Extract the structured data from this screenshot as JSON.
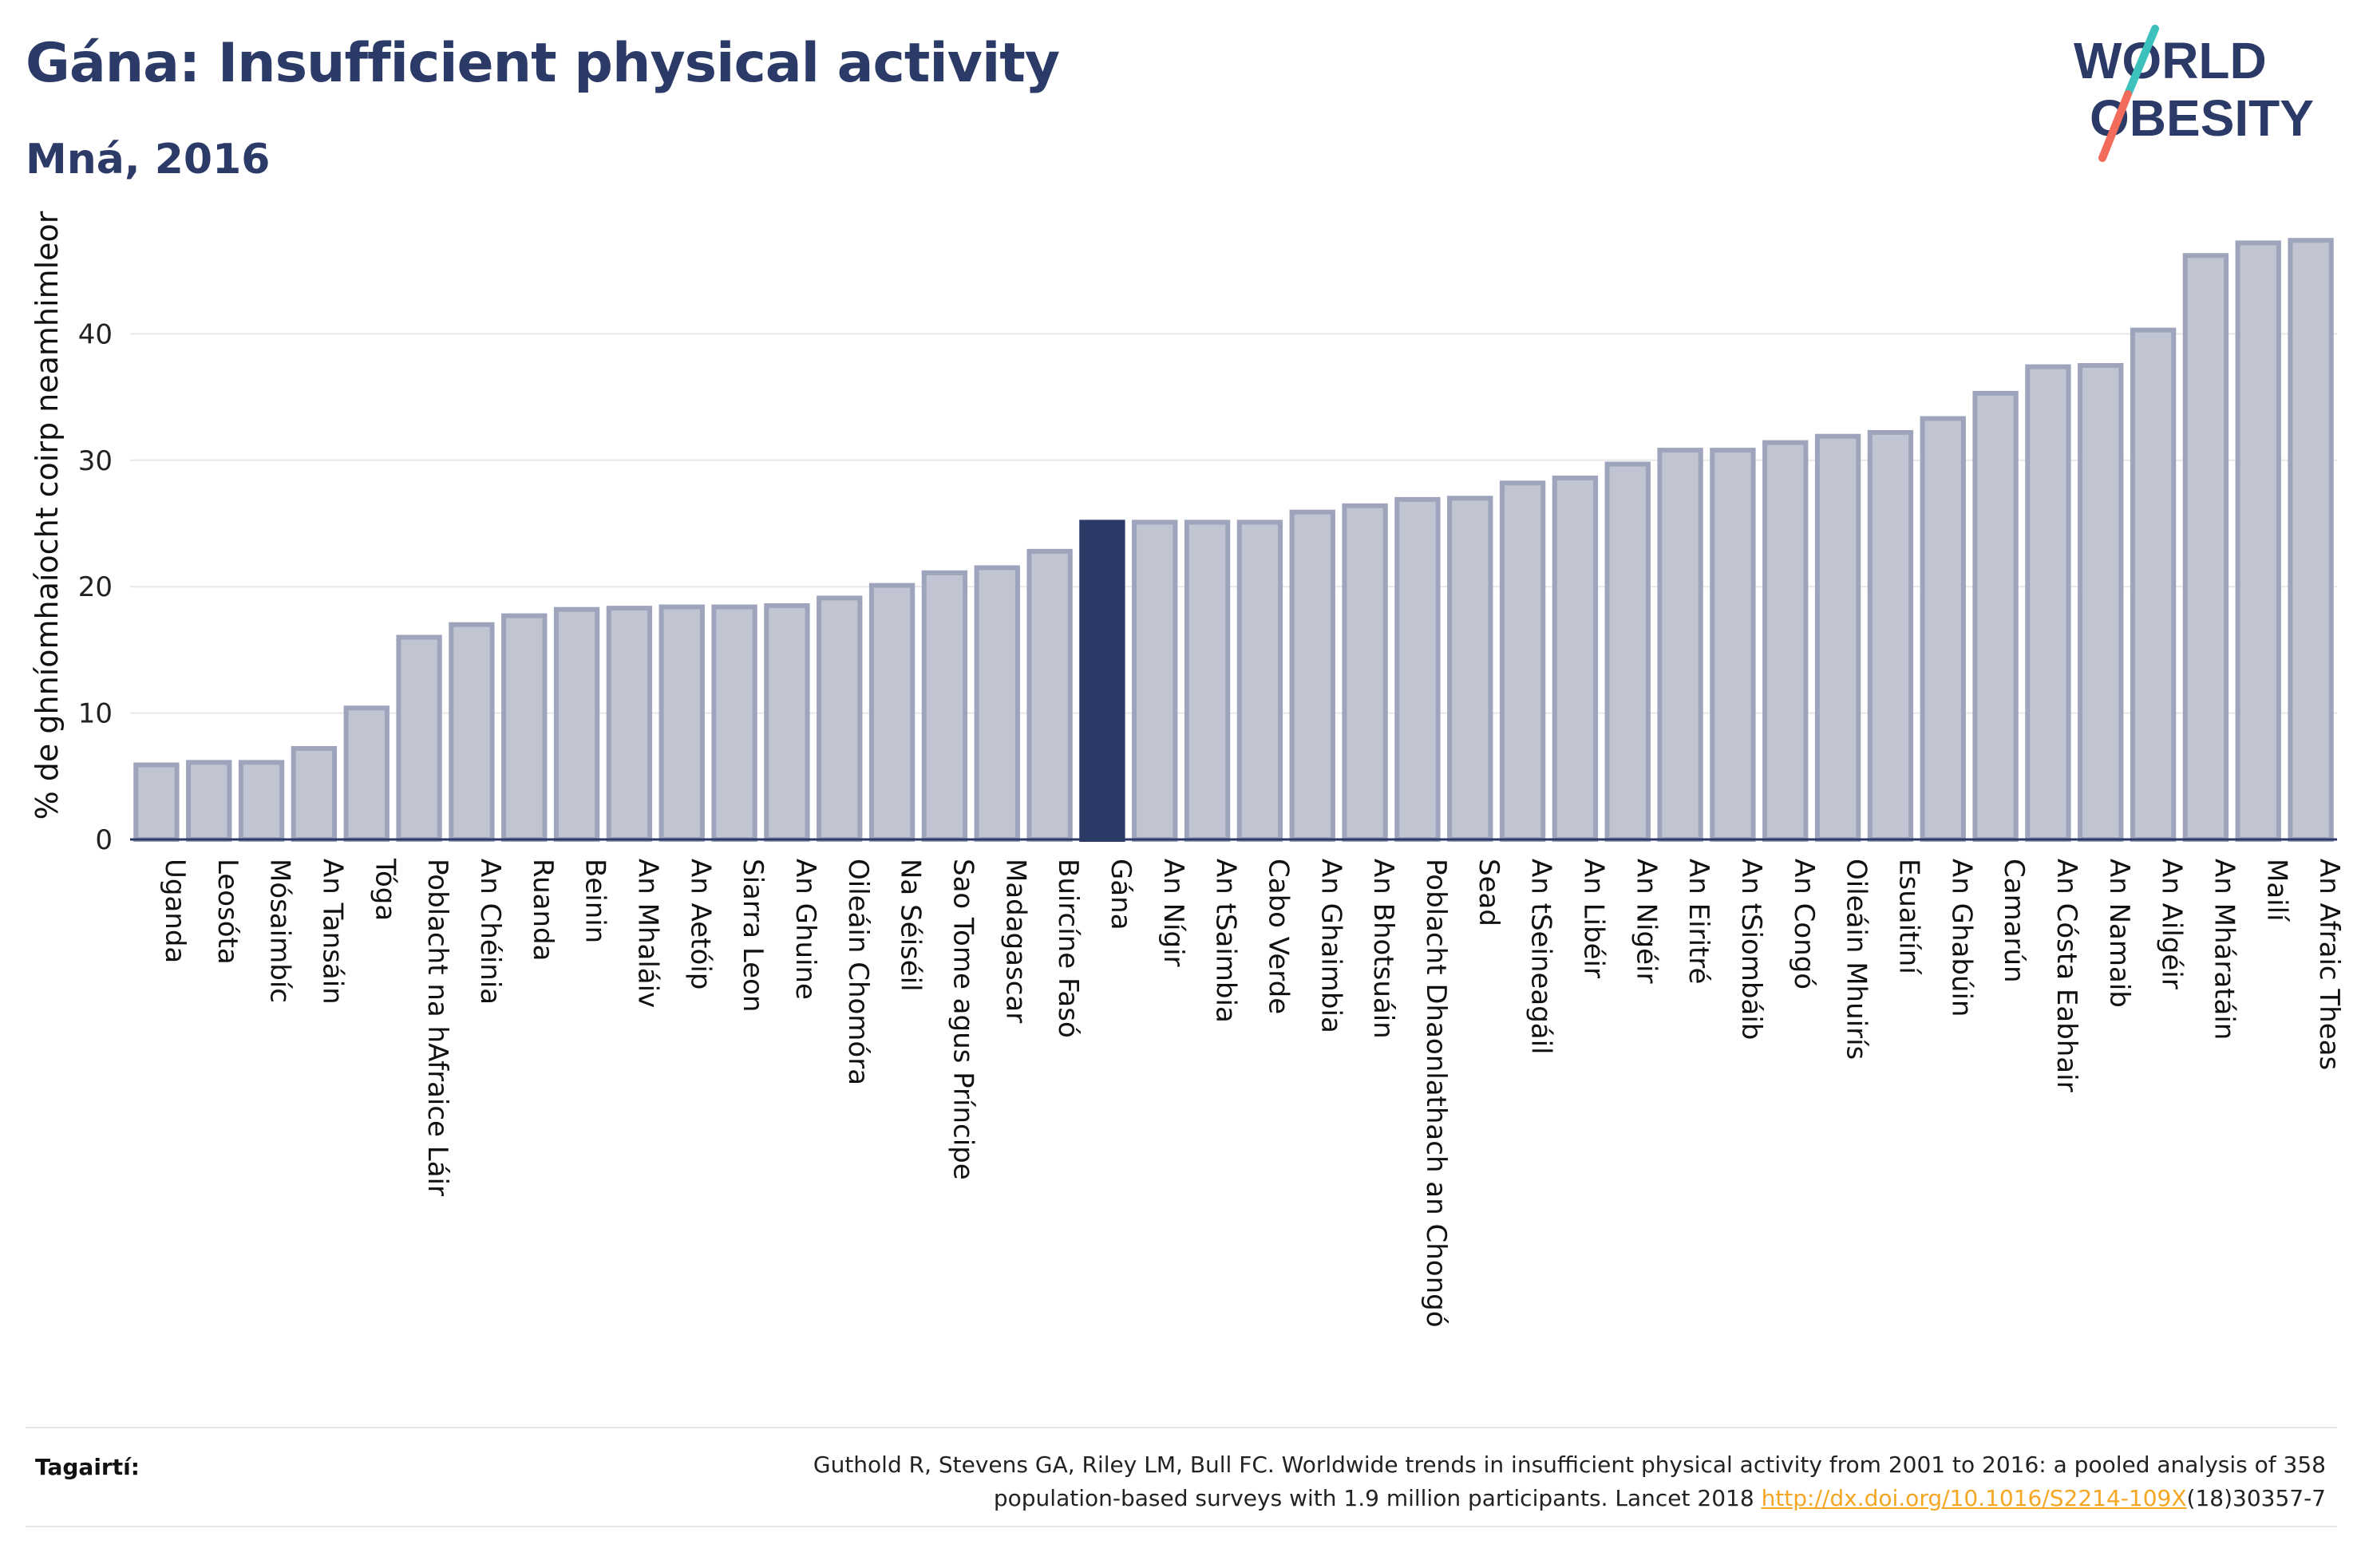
{
  "header": {
    "title": "Gána: Insufficient physical activity",
    "subtitle": "Mná, 2016"
  },
  "logo": {
    "line1": "WORLD",
    "line2": "OBESITY",
    "colors": {
      "text": "#2b3a67",
      "slash_top": "#3cc1bd",
      "slash_bottom": "#f26b5b"
    }
  },
  "footer": {
    "label": "Tagairtí:",
    "citation_part1": "Guthold R, Stevens GA, Riley LM, Bull FC. Worldwide trends in insufficient physical activity from 2001 to 2016: a pooled analysis of 358",
    "citation_part2": "population-based surveys with 1.9 million participants. Lancet 2018 ",
    "citation_link": "http://dx.doi.org/10.1016/S2214-109X",
    "citation_part3": "(18)30357-7"
  },
  "colors": {
    "bar": "#c1c5d2",
    "bar_stroke": "#9ea4bc",
    "highlight": "#2b3a67",
    "grid": "#e8e8e8",
    "axis": "#2b3a67"
  },
  "chart_data": {
    "type": "bar",
    "ylabel": "% de ghníomhaíocht coirp neamhimleor",
    "ylim": [
      0,
      50
    ],
    "yticks": [
      0,
      10,
      20,
      30,
      40
    ],
    "grid": true,
    "highlight": "Gána",
    "categories": [
      "Uganda",
      "Leosóta",
      "Mósaimbíc",
      "An Tansáin",
      "Tóga",
      "Poblacht na hAfraice Láir",
      "An Chéinia",
      "Ruanda",
      "Beinin",
      "An Mhaláiv",
      "An Aetóip",
      "Siarra Leon",
      "An Ghuine",
      "Oileáin Chomóra",
      "Na Séiséil",
      "Sao Tome agus Príncipe",
      "Madagascar",
      "Buircíne Fasó",
      "Gána",
      "An Nígir",
      "An tSaimbia",
      "Cabo Verde",
      "An Ghaimbia",
      "An Bhotsuáin",
      "Poblacht Dhaonlathach an Chongó",
      "Sead",
      "An tSeineagáil",
      "An Libéir",
      "An Nigéir",
      "An Eiritré",
      "An tSiombáib",
      "An Congó",
      "Oileáin Mhuirís",
      "Esuaitíní",
      "An Ghabúin",
      "Camarún",
      "An Cósta Eabhair",
      "An Namaib",
      "An Ailgéir",
      "An Mháratáin",
      "Mailí",
      "An Afraic Theas"
    ],
    "values": [
      5.9,
      6.1,
      6.1,
      7.2,
      10.4,
      16.0,
      17.0,
      17.7,
      18.2,
      18.3,
      18.4,
      18.4,
      18.5,
      19.1,
      20.1,
      21.1,
      21.5,
      22.8,
      25.1,
      25.1,
      25.1,
      25.1,
      25.9,
      26.4,
      26.9,
      27.0,
      28.2,
      28.6,
      29.7,
      30.8,
      30.8,
      31.4,
      31.9,
      32.2,
      33.3,
      35.3,
      37.4,
      37.5,
      40.3,
      46.2,
      47.2,
      47.4
    ]
  }
}
